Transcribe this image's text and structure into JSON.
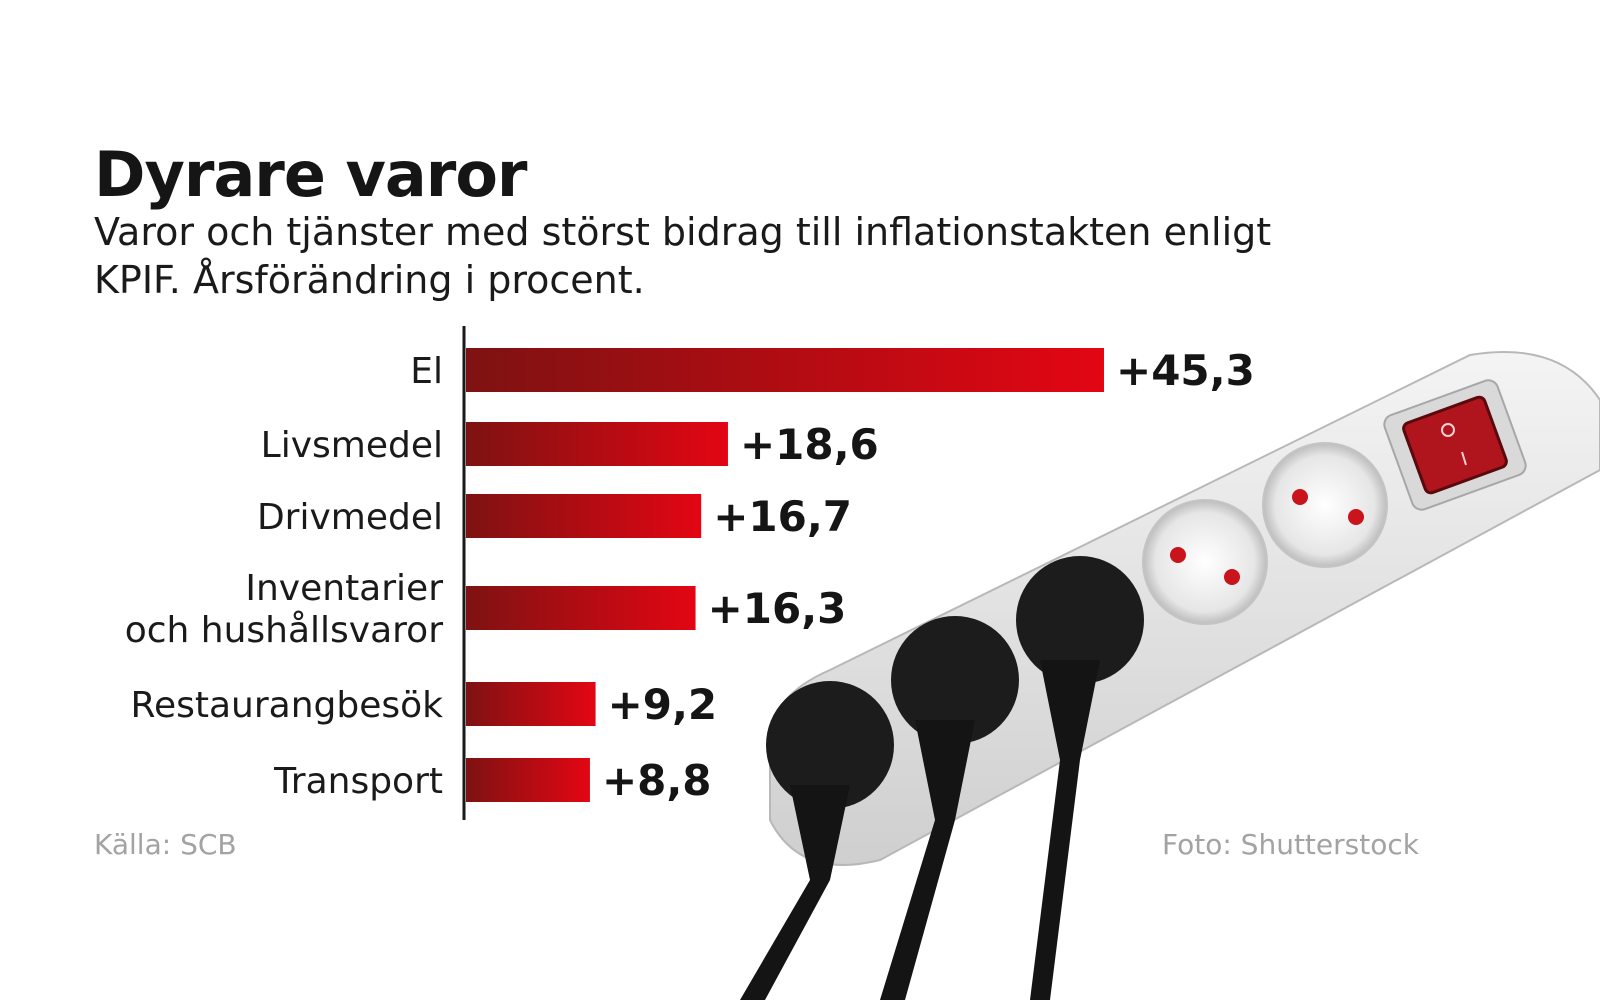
{
  "colors": {
    "bar_dark": "#7e1212",
    "bar_bright": "#e30613",
    "source_text": "#a3a3a3"
  },
  "chart_data": {
    "type": "bar",
    "orientation": "horizontal",
    "title": "Dyrare varor",
    "subtitle": "Varor och tjänster med störst bidrag till inflationstakten enligt KPIF. Årsförändring i procent.",
    "categories": [
      [
        "El"
      ],
      [
        "Livsmedel"
      ],
      [
        "Drivmedel"
      ],
      [
        "Inventarier",
        "och hushållsvaror"
      ],
      [
        "Restaurangbesök"
      ],
      [
        "Transport"
      ]
    ],
    "values": [
      45.3,
      18.6,
      16.7,
      16.3,
      9.2,
      8.8
    ],
    "value_labels": [
      "+45,3",
      "+18,6",
      "+16,7",
      "+16,3",
      "+9,2",
      "+8,8"
    ],
    "xlim": [
      0,
      45.3
    ],
    "grid": false,
    "legend": "none"
  },
  "source": "Källa: SCB",
  "photo_credit": "Foto: Shutterstock",
  "photo": {
    "subject": "power-strip-with-plugs-icon"
  }
}
